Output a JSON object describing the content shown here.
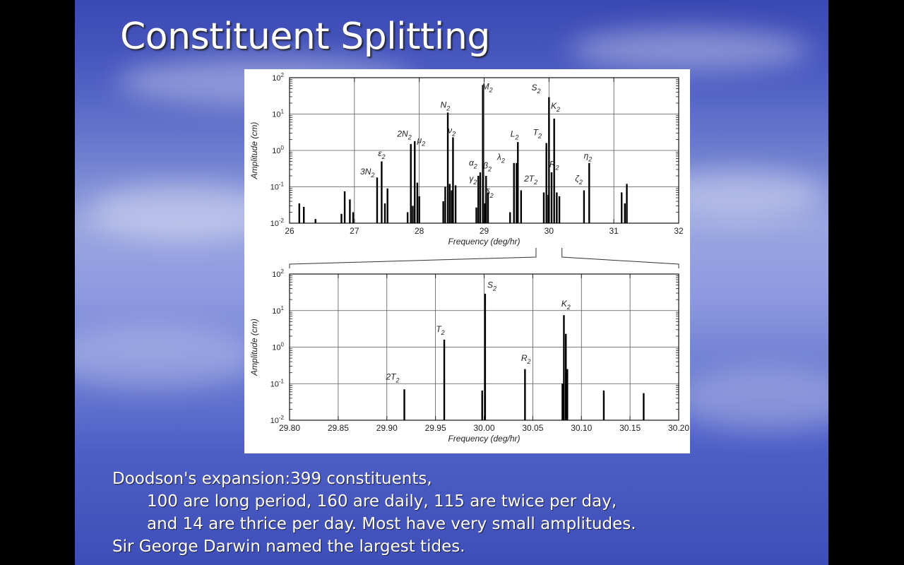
{
  "slide": {
    "title": "Constituent Splitting",
    "body_lines": [
      "Doodson's expansion:399 constituents,",
      "100 are long period, 160 are daily, 115 are twice per day,",
      "and 14 are thrice per day. Most have very small amplitudes.",
      "Sir George Darwin named the largest tides."
    ]
  },
  "chart_data": [
    {
      "type": "bar",
      "xlabel": "Frequency (deg/hr)",
      "ylabel": "Amplitude (cm)",
      "xlim": [
        26,
        32
      ],
      "ylim": [
        0.01,
        100
      ],
      "yscale": "log",
      "xticks": [
        "26",
        "27",
        "28",
        "29",
        "30",
        "31",
        "32"
      ],
      "yticks": [
        {
          "base": "10",
          "exp": "-2"
        },
        {
          "base": "10",
          "exp": "-1"
        },
        {
          "base": "10",
          "exp": "0"
        },
        {
          "base": "10",
          "exp": "1"
        },
        {
          "base": "10",
          "exp": "2"
        }
      ],
      "grid": true,
      "bars": [
        {
          "x": 26.15,
          "y": 0.035
        },
        {
          "x": 26.22,
          "y": 0.028
        },
        {
          "x": 26.4,
          "y": 0.013
        },
        {
          "x": 26.8,
          "y": 0.018
        },
        {
          "x": 26.85,
          "y": 0.075
        },
        {
          "x": 26.93,
          "y": 0.045
        },
        {
          "x": 26.98,
          "y": 0.02
        },
        {
          "x": 27.35,
          "y": 0.18
        },
        {
          "x": 27.42,
          "y": 0.5
        },
        {
          "x": 27.47,
          "y": 0.035
        },
        {
          "x": 27.51,
          "y": 0.09
        },
        {
          "x": 27.82,
          "y": 0.02
        },
        {
          "x": 27.87,
          "y": 1.5
        },
        {
          "x": 27.9,
          "y": 0.03
        },
        {
          "x": 27.93,
          "y": 1.8
        },
        {
          "x": 27.97,
          "y": 0.13
        },
        {
          "x": 28.0,
          "y": 0.055
        },
        {
          "x": 28.37,
          "y": 0.04
        },
        {
          "x": 28.4,
          "y": 0.1
        },
        {
          "x": 28.44,
          "y": 11
        },
        {
          "x": 28.47,
          "y": 0.12
        },
        {
          "x": 28.5,
          "y": 0.08
        },
        {
          "x": 28.52,
          "y": 2.3
        },
        {
          "x": 28.56,
          "y": 0.11
        },
        {
          "x": 28.88,
          "y": 0.027
        },
        {
          "x": 28.91,
          "y": 0.2
        },
        {
          "x": 28.94,
          "y": 0.25
        },
        {
          "x": 28.98,
          "y": 63
        },
        {
          "x": 29.01,
          "y": 0.035
        },
        {
          "x": 29.03,
          "y": 0.2
        },
        {
          "x": 29.06,
          "y": 0.07
        },
        {
          "x": 29.4,
          "y": 0.02
        },
        {
          "x": 29.46,
          "y": 0.45
        },
        {
          "x": 29.5,
          "y": 0.45
        },
        {
          "x": 29.52,
          "y": 1.7
        },
        {
          "x": 29.57,
          "y": 0.08
        },
        {
          "x": 29.92,
          "y": 0.07
        },
        {
          "x": 29.96,
          "y": 1.6
        },
        {
          "x": 29.99,
          "y": 0.06
        },
        {
          "x": 30.0,
          "y": 29
        },
        {
          "x": 30.04,
          "y": 0.25
        },
        {
          "x": 30.08,
          "y": 7.5
        },
        {
          "x": 30.12,
          "y": 0.07
        },
        {
          "x": 30.16,
          "y": 0.055
        },
        {
          "x": 30.54,
          "y": 0.08
        },
        {
          "x": 30.62,
          "y": 0.45
        },
        {
          "x": 31.12,
          "y": 0.07
        },
        {
          "x": 31.17,
          "y": 0.035
        },
        {
          "x": 31.2,
          "y": 0.12
        }
      ],
      "labels": [
        {
          "main": "3N",
          "sub": "2",
          "x": 27.2,
          "y": 0.22
        },
        {
          "main": "ε",
          "sub": "2",
          "x": 27.42,
          "y": 0.7
        },
        {
          "main": "2N",
          "sub": "2",
          "x": 27.77,
          "y": 2.4
        },
        {
          "main": "μ",
          "sub": "2",
          "x": 28.03,
          "y": 1.6
        },
        {
          "main": "N",
          "sub": "2",
          "x": 28.4,
          "y": 15
        },
        {
          "main": "ν",
          "sub": "2",
          "x": 28.5,
          "y": 3.0
        },
        {
          "main": "α",
          "sub": "2",
          "x": 28.83,
          "y": 0.38
        },
        {
          "main": "γ",
          "sub": "2",
          "x": 28.83,
          "y": 0.14
        },
        {
          "main": "β",
          "sub": "2",
          "x": 29.05,
          "y": 0.32
        },
        {
          "main": "δ",
          "sub": "2",
          "x": 29.08,
          "y": 0.06
        },
        {
          "main": "M",
          "sub": "2",
          "x": 29.05,
          "y": 48
        },
        {
          "main": "λ",
          "sub": "2",
          "x": 29.26,
          "y": 0.55
        },
        {
          "main": "L",
          "sub": "2",
          "x": 29.47,
          "y": 2.4
        },
        {
          "main": "2T",
          "sub": "2",
          "x": 29.72,
          "y": 0.14
        },
        {
          "main": "T",
          "sub": "2",
          "x": 29.82,
          "y": 2.6
        },
        {
          "main": "S",
          "sub": "2",
          "x": 29.8,
          "y": 45
        },
        {
          "main": "K",
          "sub": "2",
          "x": 30.1,
          "y": 14
        },
        {
          "main": "R",
          "sub": "2",
          "x": 30.08,
          "y": 0.35
        },
        {
          "main": "ζ",
          "sub": "2",
          "x": 30.46,
          "y": 0.14
        },
        {
          "main": "η",
          "sub": "2",
          "x": 30.6,
          "y": 0.6
        }
      ]
    },
    {
      "type": "bar",
      "xlabel": "Frequency (deg/hr)",
      "ylabel": "Amplitude (cm)",
      "xlim": [
        29.8,
        30.2
      ],
      "ylim": [
        0.01,
        100
      ],
      "yscale": "log",
      "xticks": [
        "29.80",
        "29.85",
        "29.90",
        "29.95",
        "30.00",
        "30.05",
        "30.10",
        "30.15",
        "30.20"
      ],
      "yticks": [
        {
          "base": "10",
          "exp": "-2"
        },
        {
          "base": "10",
          "exp": "-1"
        },
        {
          "base": "10",
          "exp": "0"
        },
        {
          "base": "10",
          "exp": "1"
        },
        {
          "base": "10",
          "exp": "2"
        }
      ],
      "grid": true,
      "bars": [
        {
          "x": 29.918,
          "y": 0.07
        },
        {
          "x": 29.959,
          "y": 1.6
        },
        {
          "x": 29.998,
          "y": 0.065
        },
        {
          "x": 30.001,
          "y": 29
        },
        {
          "x": 30.042,
          "y": 0.25
        },
        {
          "x": 30.0805,
          "y": 0.1
        },
        {
          "x": 30.082,
          "y": 7.5
        },
        {
          "x": 30.084,
          "y": 2.3
        },
        {
          "x": 30.0855,
          "y": 0.25
        },
        {
          "x": 30.123,
          "y": 0.065
        },
        {
          "x": 30.164,
          "y": 0.055
        }
      ],
      "labels": [
        {
          "main": "2T",
          "sub": "2",
          "x": 29.906,
          "y": 0.13
        },
        {
          "main": "T",
          "sub": "2",
          "x": 29.955,
          "y": 2.6
        },
        {
          "main": "S",
          "sub": "2",
          "x": 30.008,
          "y": 42
        },
        {
          "main": "R",
          "sub": "2",
          "x": 30.043,
          "y": 0.42
        },
        {
          "main": "K",
          "sub": "2",
          "x": 30.084,
          "y": 13
        }
      ]
    }
  ]
}
